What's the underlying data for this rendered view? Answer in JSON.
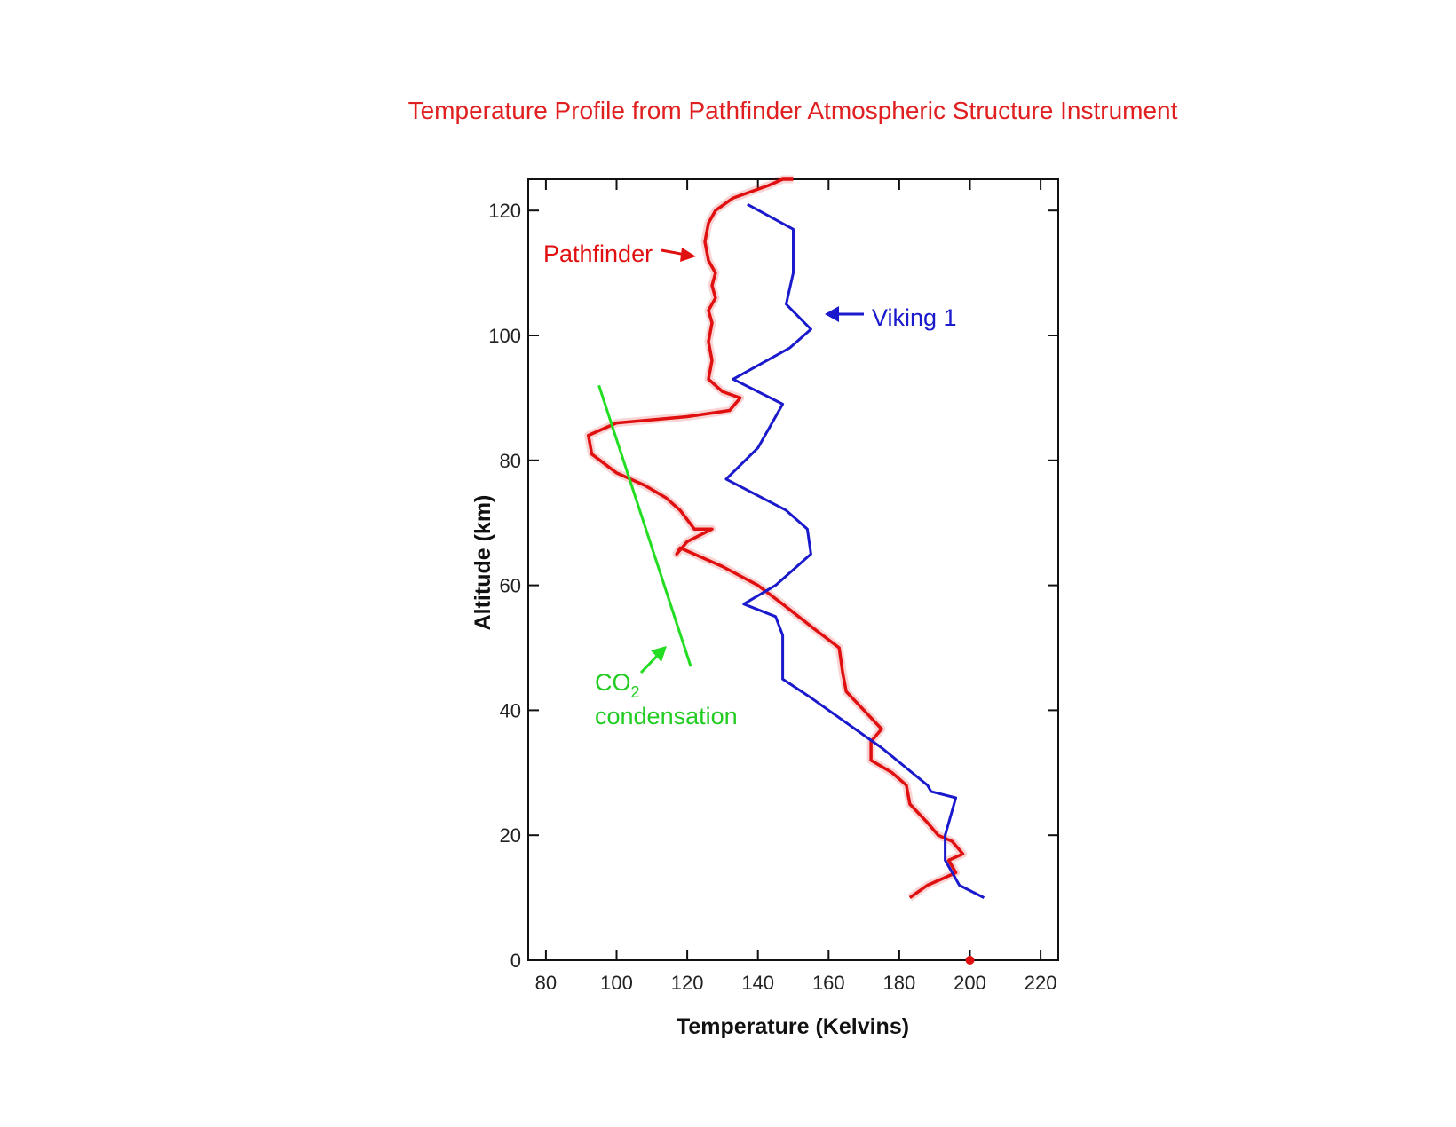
{
  "chart_data": {
    "type": "line",
    "title": "Temperature Profile from Pathfinder Atmospheric Structure Instrument",
    "xlabel": "Temperature (Kelvins)",
    "ylabel": "Altitude (km)",
    "xlim": [
      75,
      225
    ],
    "ylim": [
      0,
      125
    ],
    "xticks": [
      80,
      100,
      120,
      140,
      160,
      180,
      200,
      220
    ],
    "yticks": [
      0,
      20,
      40,
      60,
      80,
      100,
      120
    ],
    "grid": false,
    "colors": {
      "pathfinder": "#e01010",
      "viking": "#1a1acc",
      "co2": "#22dd22",
      "title": "#e02020"
    },
    "series": [
      {
        "name": "Pathfinder",
        "color": "#e01010",
        "x": [
          183,
          188,
          192,
          196,
          194,
          198,
          195,
          191,
          188,
          183,
          182,
          178,
          172,
          172,
          175,
          170,
          165,
          164,
          163,
          156,
          147,
          140,
          130,
          118,
          117,
          120,
          127,
          122,
          118,
          114,
          108,
          100,
          93,
          92,
          100,
          120,
          132,
          135,
          130,
          126,
          127,
          126,
          127,
          126,
          128,
          127,
          128,
          126,
          125,
          126,
          128,
          133,
          143,
          147,
          150
        ],
        "y": [
          10,
          12,
          13,
          14,
          16,
          17,
          19,
          20,
          22,
          25,
          28,
          30,
          32,
          35,
          37,
          40,
          43,
          46,
          50,
          53,
          57,
          60,
          63,
          66,
          65,
          67,
          69,
          69,
          72,
          74,
          76,
          78,
          81,
          84,
          86,
          87,
          88,
          90,
          91,
          93,
          96,
          99,
          102,
          104,
          106,
          108,
          110,
          112,
          115,
          118,
          120,
          122,
          124,
          125,
          125
        ]
      },
      {
        "name": "Viking 1",
        "color": "#1a1acc",
        "x": [
          204,
          197,
          195,
          193,
          193,
          196,
          196,
          189,
          188,
          175,
          155,
          147,
          147,
          145,
          136,
          145,
          155,
          154,
          148,
          131,
          140,
          147,
          133,
          149,
          155,
          148,
          150,
          150,
          137
        ],
        "y": [
          10,
          12,
          14,
          16,
          20,
          26,
          26,
          27,
          28,
          34,
          42,
          45,
          52,
          55,
          57,
          60,
          65,
          69,
          72,
          77,
          82,
          89,
          93,
          98,
          101,
          105,
          110,
          117,
          121
        ]
      },
      {
        "name": "CO2 condensation",
        "color": "#22dd22",
        "x": [
          95,
          121
        ],
        "y": [
          92,
          47
        ]
      }
    ],
    "points": [
      {
        "x": 200,
        "y": 0,
        "color": "#e01010"
      }
    ],
    "annotations": {
      "pathfinder": "Pathfinder",
      "viking": "Viking 1",
      "co2": "CO",
      "co2_sub": "2",
      "condensation": "condensation"
    }
  }
}
